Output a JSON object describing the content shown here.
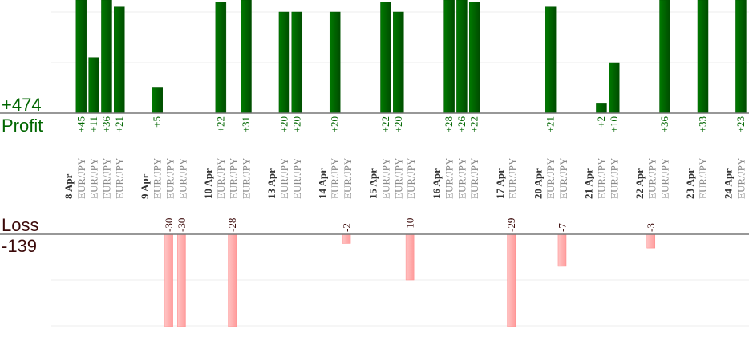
{
  "chart_data": {
    "type": "bar",
    "profit_total_label": "+474",
    "profit_label": "Profit",
    "loss_label": "Loss",
    "loss_total_label": "-139",
    "colors": {
      "profit": "#006600",
      "loss": "#ffaaaa",
      "loss_text": "#3a0808",
      "date_text": "#333333",
      "pair_text": "#888888",
      "grid": "#eeeeee",
      "axis": "#777777"
    },
    "profit_axis_max": 22,
    "loss_axis_max": 20,
    "grid_step": 10,
    "days": [
      {
        "date": "8 Apr",
        "trades": [
          {
            "pair": "EUR/JPY",
            "value": 45
          },
          {
            "pair": "EUR/JPY",
            "value": 11
          },
          {
            "pair": "EUR/JPY",
            "value": 36
          },
          {
            "pair": "EUR/JPY",
            "value": 21
          }
        ]
      },
      {
        "date": "9 Apr",
        "trades": [
          {
            "pair": "EUR/JPY",
            "value": 5
          },
          {
            "pair": "EUR/JPY",
            "value": -30
          },
          {
            "pair": "EUR/JPY",
            "value": -30
          }
        ]
      },
      {
        "date": "10 Apr",
        "trades": [
          {
            "pair": "EUR/JPY",
            "value": 22
          },
          {
            "pair": "EUR/JPY",
            "value": -28
          },
          {
            "pair": "EUR/JPY",
            "value": 31
          }
        ]
      },
      {
        "date": "13 Apr",
        "trades": [
          {
            "pair": "EUR/JPY",
            "value": 20
          },
          {
            "pair": "EUR/JPY",
            "value": 20
          }
        ]
      },
      {
        "date": "14 Apr",
        "trades": [
          {
            "pair": "EUR/JPY",
            "value": 20
          },
          {
            "pair": "EUR/JPY",
            "value": -2
          }
        ]
      },
      {
        "date": "15 Apr",
        "trades": [
          {
            "pair": "EUR/JPY",
            "value": 22
          },
          {
            "pair": "EUR/JPY",
            "value": 20
          },
          {
            "pair": "EUR/JPY",
            "value": -10
          }
        ]
      },
      {
        "date": "16 Apr",
        "trades": [
          {
            "pair": "EUR/JPY",
            "value": 28
          },
          {
            "pair": "EUR/JPY",
            "value": 26
          },
          {
            "pair": "EUR/JPY",
            "value": 22
          }
        ]
      },
      {
        "date": "17 Apr",
        "trades": [
          {
            "pair": "EUR/JPY",
            "value": -29
          }
        ]
      },
      {
        "date": "20 Apr",
        "trades": [
          {
            "pair": "EUR/JPY",
            "value": 21
          },
          {
            "pair": "EUR/JPY",
            "value": -7
          }
        ]
      },
      {
        "date": "21 Apr",
        "trades": [
          {
            "pair": "EUR/JPY",
            "value": 2
          },
          {
            "pair": "EUR/JPY",
            "value": 10
          }
        ]
      },
      {
        "date": "22 Apr",
        "trades": [
          {
            "pair": "EUR/JPY",
            "value": -3
          },
          {
            "pair": "EUR/JPY",
            "value": 36
          }
        ]
      },
      {
        "date": "23 Apr",
        "trades": [
          {
            "pair": "EUR/JPY",
            "value": 33
          }
        ]
      },
      {
        "date": "24 Apr",
        "trades": [
          {
            "pair": "EUR/JPY",
            "value": 23
          }
        ]
      }
    ]
  }
}
